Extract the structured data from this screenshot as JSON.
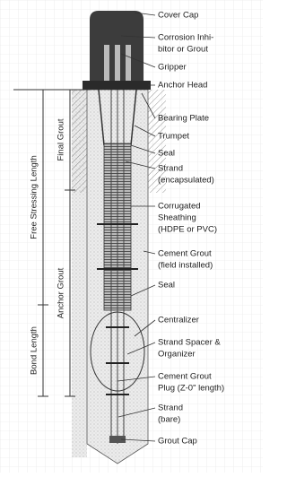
{
  "labels": [
    {
      "lines": [
        "Cover Cap"
      ]
    },
    {
      "lines": [
        "Corrosion Inhi-",
        "bitor or Grout"
      ]
    },
    {
      "lines": [
        "Gripper"
      ]
    },
    {
      "lines": [
        "Anchor Head"
      ]
    },
    {
      "lines": [
        "Bearing Plate"
      ]
    },
    {
      "lines": [
        "Trumpet"
      ]
    },
    {
      "lines": [
        "Seal"
      ]
    },
    {
      "lines": [
        "Strand",
        "(encapsulated)"
      ]
    },
    {
      "lines": [
        "Corrugated",
        "Sheathing",
        "(HDPE or PVC)"
      ]
    },
    {
      "lines": [
        "Cement Grout",
        "(field installed)"
      ]
    },
    {
      "lines": [
        "Seal"
      ]
    },
    {
      "lines": [
        "Centralizer"
      ]
    },
    {
      "lines": [
        "Strand Spacer &",
        "Organizer"
      ]
    },
    {
      "lines": [
        "Cement Grout",
        "Plug (Z-0\" length)"
      ]
    },
    {
      "lines": [
        "Strand",
        "(bare)"
      ]
    },
    {
      "lines": [
        "Grout Cap"
      ]
    }
  ],
  "dimensions": {
    "free_stressing_length": "Free Stressing Length",
    "bond_length": "Bond Length",
    "final_grout": "Final Grout",
    "anchor_grout": "Anchor Grout"
  }
}
